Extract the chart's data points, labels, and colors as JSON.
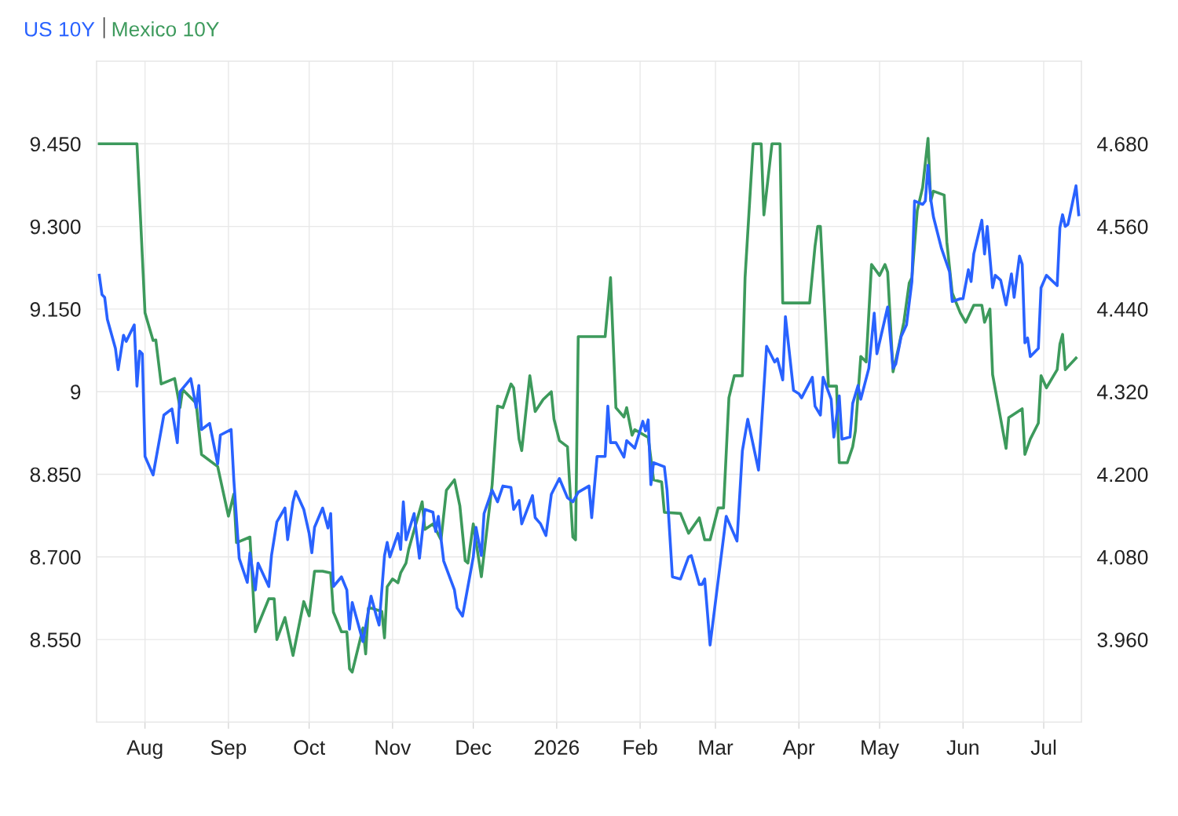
{
  "chart_data": {
    "type": "line",
    "legend": "top left",
    "grid": true,
    "marker": "none",
    "line_style": "solid",
    "xlim": [
      "2025-07-14",
      "2026-07-15"
    ],
    "xticks": [
      {
        "value": "2025-08-01",
        "label": "Aug"
      },
      {
        "value": "2025-09-01",
        "label": "Sep"
      },
      {
        "value": "2025-10-01",
        "label": "Oct"
      },
      {
        "value": "2025-11-01",
        "label": "Nov"
      },
      {
        "value": "2025-12-01",
        "label": "Dec"
      },
      {
        "value": "2026-01-01",
        "label": "2026"
      },
      {
        "value": "2026-02-01",
        "label": "Feb"
      },
      {
        "value": "2026-03-01",
        "label": "Mar"
      },
      {
        "value": "2026-04-01",
        "label": "Apr"
      },
      {
        "value": "2026-05-01",
        "label": "May"
      },
      {
        "value": "2026-06-01",
        "label": "Jun"
      },
      {
        "value": "2026-07-01",
        "label": "Jul"
      }
    ],
    "ylim": [
      8.4,
      9.6
    ],
    "yticks": [
      {
        "value": 8.55,
        "label": "8.550"
      },
      {
        "value": 8.7,
        "label": "8.700"
      },
      {
        "value": 8.85,
        "label": "8.850"
      },
      9,
      {
        "value": 9.15,
        "label": "9.150"
      },
      {
        "value": 9.3,
        "label": "9.300"
      },
      {
        "value": 9.45,
        "label": "9.450"
      }
    ],
    "y2lim": [
      3.84,
      4.8
    ],
    "y2ticks": [
      {
        "value": 3.96,
        "label": "3.960"
      },
      {
        "value": 4.08,
        "label": "4.080"
      },
      {
        "value": 4.2,
        "label": "4.200"
      },
      {
        "value": 4.32,
        "label": "4.320"
      },
      {
        "value": 4.44,
        "label": "4.440"
      },
      {
        "value": 4.56,
        "label": "4.560"
      },
      {
        "value": 4.68,
        "label": "4.680"
      }
    ],
    "series": [
      {
        "name": "US 10Y",
        "color": "#2962ff",
        "axis": "y2",
        "x": [
          "2025-07-15",
          "2025-07-16",
          "2025-07-17",
          "2025-07-18",
          "2025-07-21",
          "2025-07-22",
          "2025-07-24",
          "2025-07-25",
          "2025-07-28",
          "2025-07-29",
          "2025-07-30",
          "2025-07-31",
          "2025-08-01",
          "2025-08-04",
          "2025-08-08",
          "2025-08-11",
          "2025-08-13",
          "2025-08-14",
          "2025-08-18",
          "2025-08-20",
          "2025-08-21",
          "2025-08-22",
          "2025-08-25",
          "2025-08-28",
          "2025-08-29",
          "2025-09-02",
          "2025-09-03",
          "2025-09-05",
          "2025-09-08",
          "2025-09-09",
          "2025-09-11",
          "2025-09-12",
          "2025-09-16",
          "2025-09-17",
          "2025-09-19",
          "2025-09-22",
          "2025-09-23",
          "2025-09-25",
          "2025-09-26",
          "2025-09-29",
          "2025-10-01",
          "2025-10-02",
          "2025-10-03",
          "2025-10-06",
          "2025-10-08",
          "2025-10-09",
          "2025-10-10",
          "2025-10-13",
          "2025-10-15",
          "2025-10-16",
          "2025-10-17",
          "2025-10-21",
          "2025-10-24",
          "2025-10-26",
          "2025-10-27",
          "2025-10-29",
          "2025-10-30",
          "2025-10-31",
          "2025-11-03",
          "2025-11-04",
          "2025-11-05",
          "2025-11-06",
          "2025-11-09",
          "2025-11-11",
          "2025-11-13",
          "2025-11-16",
          "2025-11-17",
          "2025-11-18",
          "2025-11-20",
          "2025-11-24",
          "2025-11-25",
          "2025-11-27",
          "2025-12-01",
          "2025-12-02",
          "2025-12-04",
          "2025-12-05",
          "2025-12-08",
          "2025-12-10",
          "2025-12-12",
          "2025-12-15",
          "2025-12-16",
          "2025-12-18",
          "2025-12-19",
          "2025-12-23",
          "2025-12-24",
          "2025-12-26",
          "2025-12-28",
          "2025-12-30",
          "2026-01-02",
          "2026-01-05",
          "2026-01-07",
          "2026-01-09",
          "2026-01-13",
          "2026-01-14",
          "2026-01-16",
          "2026-01-19",
          "2026-01-20",
          "2026-01-21",
          "2026-01-23",
          "2026-01-26",
          "2026-01-27",
          "2026-01-30",
          "2026-02-02",
          "2026-02-03",
          "2026-02-04",
          "2026-02-05",
          "2026-02-06",
          "2026-02-10",
          "2026-02-11",
          "2026-02-13",
          "2026-02-16",
          "2026-02-19",
          "2026-02-20",
          "2026-02-23",
          "2026-02-24",
          "2026-02-25",
          "2026-02-27",
          "2026-03-02",
          "2026-03-05",
          "2026-03-09",
          "2026-03-11",
          "2026-03-13",
          "2026-03-17",
          "2026-03-18",
          "2026-03-20",
          "2026-03-23",
          "2026-03-24",
          "2026-03-26",
          "2026-03-27",
          "2026-03-30",
          "2026-04-01",
          "2026-04-02",
          "2026-04-06",
          "2026-04-07",
          "2026-04-09",
          "2026-04-10",
          "2026-04-13",
          "2026-04-14",
          "2026-04-16",
          "2026-04-17",
          "2026-04-20",
          "2026-04-21",
          "2026-04-23",
          "2026-04-24",
          "2026-04-27",
          "2026-04-29",
          "2026-04-30",
          "2026-05-04",
          "2026-05-06",
          "2026-05-07",
          "2026-05-09",
          "2026-05-11",
          "2026-05-13",
          "2026-05-14",
          "2026-05-17",
          "2026-05-18",
          "2026-05-19",
          "2026-05-20",
          "2026-05-21",
          "2026-05-24",
          "2026-05-27",
          "2026-05-28",
          "2026-05-31",
          "2026-06-01",
          "2026-06-03",
          "2026-06-04",
          "2026-06-05",
          "2026-06-08",
          "2026-06-09",
          "2026-06-10",
          "2026-06-12",
          "2026-06-13",
          "2026-06-15",
          "2026-06-17",
          "2026-06-19",
          "2026-06-20",
          "2026-06-22",
          "2026-06-23",
          "2026-06-24",
          "2026-06-25",
          "2026-06-26",
          "2026-06-29",
          "2026-06-30",
          "2026-07-02",
          "2026-07-06",
          "2026-07-07",
          "2026-07-08",
          "2026-07-09",
          "2026-07-10",
          "2026-07-13",
          "2026-07-14"
        ],
        "values": [
          4.489,
          4.461,
          4.457,
          4.425,
          4.383,
          4.352,
          4.402,
          4.393,
          4.417,
          4.328,
          4.379,
          4.375,
          4.226,
          4.199,
          4.286,
          4.295,
          4.246,
          4.32,
          4.339,
          4.297,
          4.329,
          4.265,
          4.274,
          4.215,
          4.257,
          4.265,
          4.192,
          4.078,
          4.043,
          4.086,
          4.032,
          4.071,
          4.037,
          4.082,
          4.131,
          4.151,
          4.105,
          4.16,
          4.175,
          4.149,
          4.114,
          4.086,
          4.123,
          4.151,
          4.122,
          4.143,
          4.037,
          4.051,
          4.032,
          3.975,
          4.014,
          3.957,
          4.023,
          3.994,
          3.981,
          4.082,
          4.101,
          4.08,
          4.114,
          4.091,
          4.16,
          4.105,
          4.143,
          4.078,
          4.149,
          4.145,
          4.117,
          4.139,
          4.074,
          4.032,
          4.006,
          3.994,
          4.08,
          4.123,
          4.082,
          4.143,
          4.177,
          4.16,
          4.183,
          4.181,
          4.149,
          4.162,
          4.128,
          4.169,
          4.137,
          4.128,
          4.111,
          4.171,
          4.194,
          4.166,
          4.16,
          4.174,
          4.183,
          4.137,
          4.226,
          4.226,
          4.299,
          4.246,
          4.246,
          4.225,
          4.249,
          4.238,
          4.277,
          4.263,
          4.279,
          4.185,
          4.217,
          4.211,
          4.177,
          4.051,
          4.048,
          4.08,
          4.082,
          4.04,
          4.04,
          4.048,
          3.952,
          4.046,
          4.139,
          4.103,
          4.234,
          4.28,
          4.206,
          4.265,
          4.386,
          4.363,
          4.368,
          4.337,
          4.429,
          4.322,
          4.317,
          4.311,
          4.341,
          4.299,
          4.286,
          4.341,
          4.309,
          4.254,
          4.314,
          4.251,
          4.254,
          4.303,
          4.329,
          4.309,
          4.354,
          4.434,
          4.375,
          4.443,
          4.354,
          4.36,
          4.4,
          4.417,
          4.48,
          4.597,
          4.592,
          4.597,
          4.649,
          4.6,
          4.574,
          4.528,
          4.494,
          4.451,
          4.455,
          4.455,
          4.497,
          4.48,
          4.52,
          4.569,
          4.52,
          4.56,
          4.471,
          4.489,
          4.482,
          4.446,
          4.491,
          4.457,
          4.517,
          4.505,
          4.391,
          4.398,
          4.371,
          4.383,
          4.471,
          4.489,
          4.474,
          4.558,
          4.577,
          4.56,
          4.563,
          4.619,
          4.577
        ]
      },
      {
        "name": "Mexico 10Y",
        "color": "#3d9a5c",
        "axis": "y",
        "x": [
          "2025-07-15",
          "2025-07-29",
          "2025-08-01",
          "2025-08-04",
          "2025-08-05",
          "2025-08-07",
          "2025-08-12",
          "2025-08-14",
          "2025-08-15",
          "2025-08-20",
          "2025-08-22",
          "2025-08-28",
          "2025-09-01",
          "2025-09-03",
          "2025-09-04",
          "2025-09-09",
          "2025-09-11",
          "2025-09-16",
          "2025-09-18",
          "2025-09-19",
          "2025-09-22",
          "2025-09-25",
          "2025-09-29",
          "2025-10-01",
          "2025-10-03",
          "2025-10-06",
          "2025-10-09",
          "2025-10-10",
          "2025-10-13",
          "2025-10-15",
          "2025-10-16",
          "2025-10-17",
          "2025-10-21",
          "2025-10-22",
          "2025-10-23",
          "2025-10-24",
          "2025-10-28",
          "2025-10-29",
          "2025-10-30",
          "2025-11-01",
          "2025-11-03",
          "2025-11-04",
          "2025-11-06",
          "2025-11-07",
          "2025-11-12",
          "2025-11-13",
          "2025-11-16",
          "2025-11-19",
          "2025-11-21",
          "2025-11-24",
          "2025-11-26",
          "2025-11-28",
          "2025-11-29",
          "2025-12-01",
          "2025-12-04",
          "2025-12-08",
          "2025-12-10",
          "2025-12-12",
          "2025-12-15",
          "2025-12-16",
          "2025-12-18",
          "2025-12-19",
          "2025-12-22",
          "2025-12-24",
          "2025-12-27",
          "2025-12-30",
          "2025-12-31",
          "2026-01-02",
          "2026-01-05",
          "2026-01-07",
          "2026-01-08",
          "2026-01-09",
          "2026-01-19",
          "2026-01-21",
          "2026-01-23",
          "2026-01-26",
          "2026-01-27",
          "2026-01-29",
          "2026-01-30",
          "2026-02-04",
          "2026-02-06",
          "2026-02-09",
          "2026-02-10",
          "2026-02-16",
          "2026-02-19",
          "2026-02-23",
          "2026-02-25",
          "2026-02-27",
          "2026-03-02",
          "2026-03-04",
          "2026-03-06",
          "2026-03-08",
          "2026-03-11",
          "2026-03-12",
          "2026-03-15",
          "2026-03-18",
          "2026-03-19",
          "2026-03-22",
          "2026-03-25",
          "2026-03-26",
          "2026-04-05",
          "2026-04-07",
          "2026-04-08",
          "2026-04-09",
          "2026-04-12",
          "2026-04-15",
          "2026-04-16",
          "2026-04-19",
          "2026-04-21",
          "2026-04-22",
          "2026-04-24",
          "2026-04-26",
          "2026-04-28",
          "2026-05-01",
          "2026-05-03",
          "2026-05-04",
          "2026-05-06",
          "2026-05-08",
          "2026-05-10",
          "2026-05-12",
          "2026-05-13",
          "2026-05-15",
          "2026-05-17",
          "2026-05-19",
          "2026-05-20",
          "2026-05-21",
          "2026-05-25",
          "2026-05-26",
          "2026-05-28",
          "2026-05-31",
          "2026-06-02",
          "2026-06-05",
          "2026-06-08",
          "2026-06-09",
          "2026-06-11",
          "2026-06-12",
          "2026-06-17",
          "2026-06-18",
          "2026-06-23",
          "2026-06-24",
          "2026-06-26",
          "2026-06-29",
          "2026-06-30",
          "2026-07-02",
          "2026-07-06",
          "2026-07-07",
          "2026-07-08",
          "2026-07-09",
          "2026-07-13"
        ],
        "values": [
          9.45,
          9.45,
          9.143,
          9.093,
          9.094,
          9.014,
          9.024,
          8.971,
          9.004,
          8.979,
          8.886,
          8.864,
          8.774,
          8.814,
          8.726,
          8.736,
          8.564,
          8.624,
          8.624,
          8.55,
          8.59,
          8.521,
          8.619,
          8.593,
          8.674,
          8.674,
          8.671,
          8.6,
          8.564,
          8.564,
          8.497,
          8.491,
          8.571,
          8.524,
          8.607,
          8.607,
          8.601,
          8.553,
          8.646,
          8.66,
          8.653,
          8.671,
          8.689,
          8.714,
          8.8,
          8.75,
          8.76,
          8.731,
          8.821,
          8.84,
          8.793,
          8.693,
          8.689,
          8.76,
          8.664,
          8.831,
          8.974,
          8.971,
          9.014,
          9.007,
          8.914,
          8.893,
          9.029,
          8.964,
          8.986,
          9.0,
          8.95,
          8.911,
          8.9,
          8.736,
          8.731,
          9.1,
          9.1,
          9.207,
          8.971,
          8.954,
          8.971,
          8.921,
          8.931,
          8.917,
          8.84,
          8.836,
          8.781,
          8.779,
          8.743,
          8.771,
          8.731,
          8.731,
          8.789,
          8.789,
          8.989,
          9.029,
          9.029,
          9.207,
          9.45,
          9.45,
          9.321,
          9.45,
          9.45,
          9.161,
          9.161,
          9.264,
          9.3,
          9.3,
          9.01,
          9.01,
          8.871,
          8.871,
          8.9,
          8.929,
          9.064,
          9.054,
          9.231,
          9.211,
          9.231,
          9.217,
          9.036,
          9.079,
          9.126,
          9.197,
          9.207,
          9.329,
          9.371,
          9.46,
          9.346,
          9.364,
          9.357,
          9.271,
          9.179,
          9.143,
          9.126,
          9.157,
          9.157,
          9.126,
          9.15,
          9.031,
          8.897,
          8.953,
          8.969,
          8.886,
          8.914,
          8.943,
          9.029,
          9.007,
          9.04,
          9.086,
          9.104,
          9.04,
          9.061
        ]
      }
    ]
  }
}
